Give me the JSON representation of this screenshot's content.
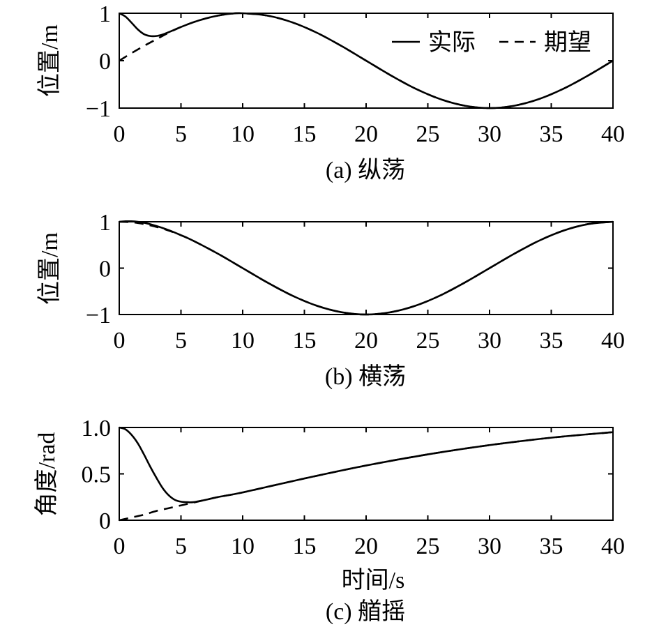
{
  "legend": {
    "actual": "实际",
    "desired": "期望"
  },
  "chart_data": [
    {
      "type": "line",
      "panel": "a",
      "caption": "(a) 纵荡",
      "xlabel": "",
      "ylabel": "位置/m",
      "xlim": [
        0,
        40
      ],
      "ylim": [
        -1,
        1
      ],
      "xticks": [
        0,
        5,
        10,
        15,
        20,
        25,
        30,
        35,
        40
      ],
      "yticks": [
        -1,
        0,
        1
      ],
      "ytick_labels": [
        "−1",
        "0",
        "1"
      ],
      "legend_position": "top-right",
      "series": [
        {
          "name": "实际",
          "style": "solid",
          "x": [
            0,
            0.5,
            1,
            1.5,
            2,
            2.5,
            3,
            3.5,
            4,
            5,
            6,
            7,
            8,
            9,
            10,
            12,
            14,
            16,
            18,
            20,
            22,
            24,
            26,
            28,
            30,
            32,
            34,
            36,
            38,
            40
          ],
          "y": [
            1.0,
            0.93,
            0.8,
            0.66,
            0.56,
            0.52,
            0.52,
            0.55,
            0.6,
            0.71,
            0.81,
            0.89,
            0.95,
            0.99,
            1.0,
            0.95,
            0.81,
            0.59,
            0.31,
            0.0,
            -0.31,
            -0.59,
            -0.81,
            -0.95,
            -1.0,
            -0.95,
            -0.81,
            -0.59,
            -0.31,
            0.0
          ]
        },
        {
          "name": "期望",
          "style": "dashed",
          "x": [
            0,
            1,
            2,
            3,
            4,
            5,
            6,
            7,
            8,
            9,
            10,
            12,
            14,
            16,
            18,
            20,
            22,
            24,
            26,
            28,
            30,
            32,
            34,
            36,
            38,
            40
          ],
          "y": [
            0.0,
            0.16,
            0.31,
            0.45,
            0.59,
            0.71,
            0.81,
            0.89,
            0.95,
            0.99,
            1.0,
            0.95,
            0.81,
            0.59,
            0.31,
            0.0,
            -0.31,
            -0.59,
            -0.81,
            -0.95,
            -1.0,
            -0.95,
            -0.81,
            -0.59,
            -0.31,
            0.0
          ]
        }
      ]
    },
    {
      "type": "line",
      "panel": "b",
      "caption": "(b) 横荡",
      "xlabel": "",
      "ylabel": "位置/m",
      "xlim": [
        0,
        40
      ],
      "ylim": [
        -1,
        1
      ],
      "xticks": [
        0,
        5,
        10,
        15,
        20,
        25,
        30,
        35,
        40
      ],
      "yticks": [
        -1,
        0,
        1
      ],
      "ytick_labels": [
        "−1",
        "0",
        "1"
      ],
      "series": [
        {
          "name": "实际",
          "style": "solid",
          "x": [
            0,
            0.5,
            1,
            1.5,
            2,
            3,
            4,
            5,
            6,
            8,
            10,
            12,
            14,
            16,
            18,
            20,
            22,
            24,
            26,
            28,
            30,
            32,
            34,
            36,
            38,
            40
          ],
          "y": [
            1.0,
            1.01,
            1.01,
            1.0,
            0.98,
            0.91,
            0.82,
            0.71,
            0.59,
            0.31,
            0.0,
            -0.31,
            -0.59,
            -0.81,
            -0.95,
            -1.0,
            -0.95,
            -0.81,
            -0.59,
            -0.31,
            0.0,
            0.31,
            0.59,
            0.81,
            0.95,
            1.0
          ]
        },
        {
          "name": "期望",
          "style": "dashed",
          "x": [
            0,
            1,
            2,
            3,
            4,
            5,
            6,
            8,
            10,
            12,
            14,
            16,
            18,
            20,
            22,
            24,
            26,
            28,
            30,
            32,
            34,
            36,
            38,
            40
          ],
          "y": [
            1.0,
            0.99,
            0.95,
            0.89,
            0.81,
            0.71,
            0.59,
            0.31,
            0.0,
            -0.31,
            -0.59,
            -0.81,
            -0.95,
            -1.0,
            -0.95,
            -0.81,
            -0.59,
            -0.31,
            0.0,
            0.31,
            0.59,
            0.81,
            0.95,
            1.0
          ]
        }
      ]
    },
    {
      "type": "line",
      "panel": "c",
      "caption": "(c) 艏摇",
      "xlabel": "时间/s",
      "ylabel": "角度/rad",
      "xlim": [
        0,
        40
      ],
      "ylim": [
        0,
        1
      ],
      "xticks": [
        0,
        5,
        10,
        15,
        20,
        25,
        30,
        35,
        40
      ],
      "yticks": [
        0,
        0.5,
        1.0
      ],
      "ytick_labels": [
        "0",
        "0.5",
        "1.0"
      ],
      "series": [
        {
          "name": "实际",
          "style": "solid",
          "x": [
            0,
            0.5,
            1,
            1.5,
            2,
            2.5,
            3,
            3.5,
            4,
            4.5,
            5,
            5.5,
            6,
            7,
            8,
            10,
            15,
            20,
            25,
            30,
            35,
            40
          ],
          "y": [
            1.0,
            0.98,
            0.92,
            0.83,
            0.71,
            0.58,
            0.46,
            0.35,
            0.27,
            0.22,
            0.2,
            0.195,
            0.195,
            0.22,
            0.25,
            0.3,
            0.45,
            0.59,
            0.71,
            0.81,
            0.89,
            0.95
          ]
        },
        {
          "name": "期望",
          "style": "dashed",
          "x": [
            0,
            1,
            2,
            3,
            4,
            5,
            6,
            7,
            8,
            10,
            15,
            20,
            25,
            30,
            35,
            40
          ],
          "y": [
            0.0,
            0.03,
            0.06,
            0.1,
            0.13,
            0.16,
            0.19,
            0.22,
            0.25,
            0.3,
            0.45,
            0.59,
            0.71,
            0.81,
            0.89,
            0.95
          ]
        }
      ]
    }
  ]
}
